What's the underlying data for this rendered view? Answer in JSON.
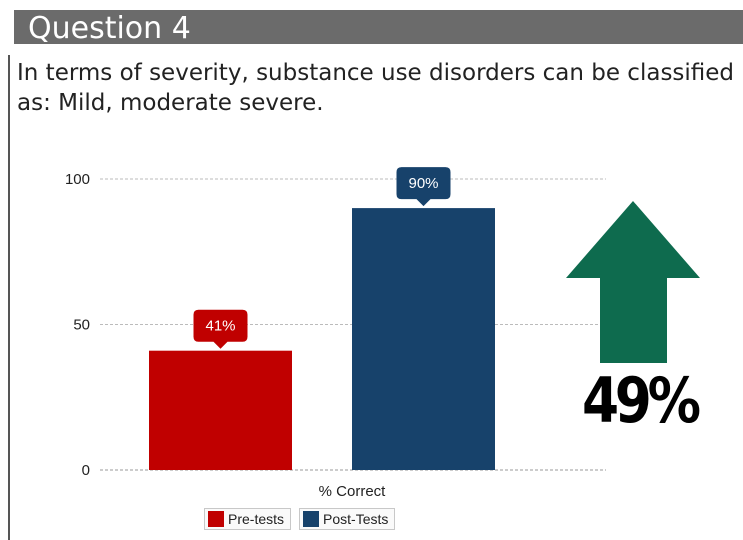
{
  "slide": {
    "title": "Question 4",
    "question": "In terms of severity, substance use disorders can be classified as: Mild, moderate severe."
  },
  "chart_data": {
    "type": "bar",
    "categories": [
      "% Correct"
    ],
    "series": [
      {
        "name": "Pre-tests",
        "values": [
          41
        ],
        "label": "41%",
        "color": "#c00000"
      },
      {
        "name": "Post-Tests",
        "values": [
          90
        ],
        "label": "90%",
        "color": "#17426b"
      }
    ],
    "xlabel": "% Correct",
    "ylabel": "",
    "ylim": [
      0,
      100
    ],
    "yticks": [
      "0",
      "50",
      "100"
    ],
    "grid": true,
    "legend_position": "bottom"
  },
  "change": {
    "value": "49%",
    "direction": "up",
    "arrow_color": "#0e6b4e"
  }
}
